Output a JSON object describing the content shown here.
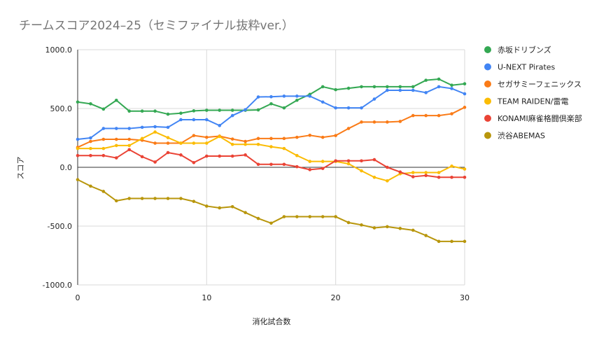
{
  "chart_data": {
    "type": "line",
    "title": "チームスコア2024–25（セミファイナル抜粋ver.）",
    "xlabel": "消化試合数",
    "ylabel": "スコア",
    "xlim": [
      0,
      30
    ],
    "ylim": [
      -1000,
      1000
    ],
    "x_ticks": [
      "0",
      "10",
      "20",
      "30"
    ],
    "y_ticks": [
      "1000.0",
      "500.0",
      "0.0",
      "-500.0",
      "-1000.0"
    ],
    "grid": true,
    "legend_position": "right",
    "x": [
      0,
      1,
      2,
      3,
      4,
      5,
      6,
      7,
      8,
      9,
      10,
      11,
      12,
      13,
      14,
      15,
      16,
      17,
      18,
      19,
      20,
      21,
      22,
      23,
      24,
      25,
      26,
      27,
      28,
      29,
      30
    ],
    "series": [
      {
        "name": "赤坂ドリブンズ",
        "color": "#34a853",
        "values": [
          555,
          540,
          495,
          570,
          478,
          478,
          478,
          452,
          460,
          480,
          485,
          485,
          485,
          485,
          488,
          540,
          505,
          570,
          620,
          685,
          660,
          672,
          685,
          685,
          685,
          685,
          685,
          740,
          750,
          698,
          710
        ]
      },
      {
        "name": "U-NEXT Pirates",
        "color": "#4285f4",
        "values": [
          238,
          250,
          330,
          330,
          330,
          340,
          345,
          340,
          405,
          405,
          405,
          355,
          440,
          490,
          598,
          600,
          605,
          605,
          605,
          555,
          505,
          505,
          505,
          580,
          655,
          655,
          655,
          635,
          685,
          670,
          625
        ]
      },
      {
        "name": "セガサミーフェニックス",
        "color": "#fa7b17",
        "values": [
          170,
          220,
          238,
          238,
          238,
          230,
          205,
          205,
          205,
          270,
          255,
          265,
          240,
          220,
          245,
          245,
          245,
          255,
          272,
          255,
          270,
          330,
          385,
          385,
          385,
          390,
          440,
          440,
          440,
          455,
          510
        ]
      },
      {
        "name": "TEAM RAIDEN/雷電",
        "color": "#fbbc04",
        "values": [
          160,
          160,
          160,
          185,
          185,
          245,
          300,
          252,
          205,
          205,
          205,
          262,
          195,
          195,
          195,
          175,
          160,
          100,
          50,
          50,
          50,
          30,
          -30,
          -85,
          -115,
          -55,
          -45,
          -45,
          -45,
          10,
          -15
        ]
      },
      {
        "name": "KONAMI麻雀格闘倶楽部",
        "color": "#ea4335",
        "values": [
          100,
          100,
          100,
          80,
          150,
          90,
          45,
          125,
          105,
          40,
          95,
          95,
          95,
          105,
          25,
          25,
          25,
          5,
          -20,
          -10,
          55,
          55,
          55,
          65,
          0,
          -40,
          -80,
          -70,
          -85,
          -85,
          -85
        ]
      },
      {
        "name": "渋谷ABEMAS",
        "color": "#b8960c",
        "values": [
          -105,
          -160,
          -205,
          -285,
          -265,
          -265,
          -265,
          -265,
          -265,
          -290,
          -330,
          -345,
          -335,
          -385,
          -435,
          -475,
          -420,
          -420,
          -420,
          -420,
          -420,
          -470,
          -490,
          -515,
          -505,
          -520,
          -535,
          -580,
          -630,
          -630,
          -630
        ]
      }
    ]
  }
}
